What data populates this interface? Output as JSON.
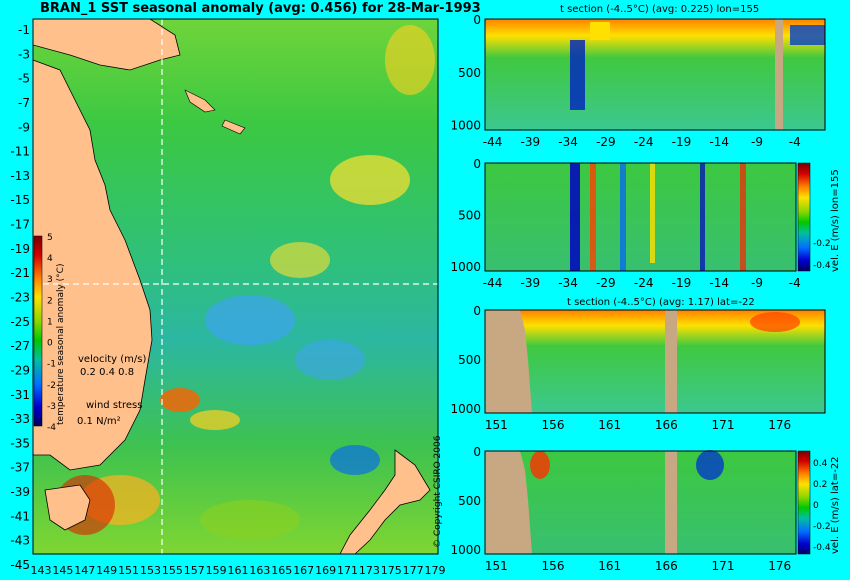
{
  "main_title": "BRAN_1 SST seasonal anomaly (avg: 0.456) for 28-Mar-1993",
  "copyright": "© Copyright CSIRO 2006",
  "map": {
    "lat_ticks": [
      "-1",
      "-3",
      "-5",
      "-7",
      "-9",
      "-11",
      "-13",
      "-15",
      "-17",
      "-19",
      "-21",
      "-23",
      "-25",
      "-27",
      "-29",
      "-31",
      "-33",
      "-35",
      "-37",
      "-39",
      "-41",
      "-43",
      "-45"
    ],
    "lon_ticks": [
      "143",
      "145",
      "147",
      "149",
      "151",
      "153",
      "155",
      "157",
      "159",
      "161",
      "163",
      "165",
      "167",
      "169",
      "171",
      "173",
      "175",
      "177",
      "179"
    ],
    "section_lon": 155,
    "section_lat": -22,
    "colorbar": {
      "label": "temperature seasonal anomaly (°C)",
      "ticks": [
        "5",
        "4",
        "3",
        "2",
        "1",
        "0",
        "-1",
        "-2",
        "-3",
        "-4"
      ]
    },
    "velocity_legend": {
      "title": "velocity (m/s)",
      "values": "0.2 0.4 0.8"
    },
    "wind_legend": {
      "title": "wind stress",
      "value": "0.1 N/m²"
    }
  },
  "panels": {
    "p1": {
      "title": "t section (-4..5°C) (avg: 0.225) lon=155",
      "x_ticks": [
        "-44",
        "-39",
        "-34",
        "-29",
        "-24",
        "-19",
        "-14",
        "-9",
        "-4"
      ],
      "y_ticks": [
        "0",
        "500",
        "1000"
      ]
    },
    "p2": {
      "title": "",
      "side_label": "vel. E (m/s) lon=155",
      "x_ticks": [
        "-44",
        "-39",
        "-34",
        "-29",
        "-24",
        "-19",
        "-14",
        "-9",
        "-4"
      ],
      "y_ticks": [
        "0",
        "500",
        "1000"
      ],
      "cb_ticks": [
        "-0.2",
        "-0.4"
      ]
    },
    "p3": {
      "title": "t section (-4..5°C) (avg: 1.17) lat=-22",
      "x_ticks": [
        "151",
        "156",
        "161",
        "166",
        "171",
        "176"
      ],
      "y_ticks": [
        "0",
        "500",
        "1000"
      ]
    },
    "p4": {
      "title": "",
      "side_label": "vel. E (m/s) lat=-22",
      "x_ticks": [
        "151",
        "156",
        "161",
        "166",
        "171",
        "176"
      ],
      "y_ticks": [
        "0",
        "500",
        "1000"
      ],
      "cb_ticks": [
        "0.4",
        "0.2",
        "0",
        "-0.2",
        "-0.4"
      ]
    }
  },
  "chart_data": [
    {
      "type": "heatmap",
      "title": "BRAN_1 SST seasonal anomaly (avg: 0.456) for 28-Mar-1993",
      "x_axis": "longitude",
      "y_axis": "latitude",
      "xlim": [
        143,
        179
      ],
      "ylim": [
        -45,
        -1
      ],
      "value_range": [
        -4,
        5
      ],
      "units": "°C"
    },
    {
      "type": "heatmap",
      "title": "t section (-4..5°C) (avg: 0.225) lon=155",
      "xlim": [
        -45,
        0
      ],
      "ylim": [
        1000,
        0
      ],
      "x_ticks": [
        -44,
        -39,
        -34,
        -29,
        -24,
        -19,
        -14,
        -9,
        -4
      ],
      "y_ticks": [
        0,
        500,
        1000
      ]
    },
    {
      "type": "heatmap",
      "title": "",
      "label": "vel. E (m/s) lon=155",
      "xlim": [
        -45,
        0
      ],
      "ylim": [
        1000,
        0
      ],
      "value_range": [
        -0.4,
        0.4
      ]
    },
    {
      "type": "heatmap",
      "title": "t section (-4..5°C) (avg: 1.17) lat=-22",
      "xlim": [
        150,
        180
      ],
      "ylim": [
        1000,
        0
      ],
      "x_ticks": [
        151,
        156,
        161,
        166,
        171,
        176
      ],
      "y_ticks": [
        0,
        500,
        1000
      ]
    },
    {
      "type": "heatmap",
      "title": "",
      "label": "vel. E (m/s) lat=-22",
      "xlim": [
        150,
        180
      ],
      "ylim": [
        1000,
        0
      ],
      "value_range": [
        -0.4,
        0.4
      ],
      "cb_ticks": [
        0.4,
        0.2,
        0,
        -0.2,
        -0.4
      ]
    }
  ]
}
